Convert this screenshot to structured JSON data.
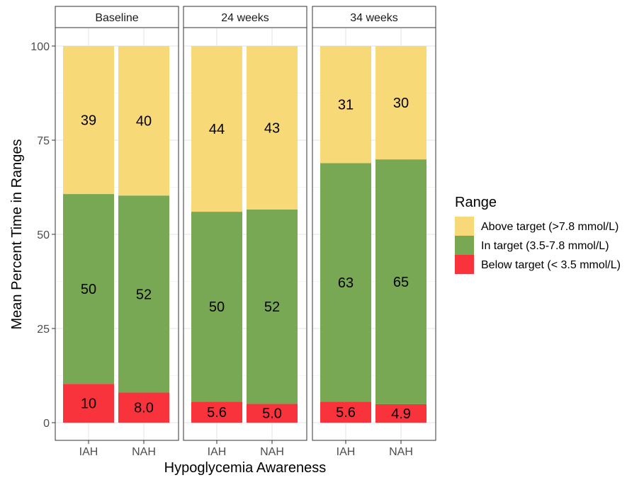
{
  "chart_data": {
    "type": "bar",
    "stacked": true,
    "facet_labels": [
      "Baseline",
      "24 weeks",
      "34 weeks"
    ],
    "categories": [
      "IAH",
      "NAH"
    ],
    "xlabel": "Hypoglycemia Awareness",
    "ylabel": "Mean Percent Time in Ranges",
    "ylim": [
      0,
      100
    ],
    "yticks": [
      0,
      25,
      50,
      75,
      100
    ],
    "grid": true,
    "legend": {
      "title": "Range",
      "position": "right"
    },
    "series": [
      {
        "name": "Below target (< 3.5 mmol/L)",
        "color": "#F8333C",
        "labels": [
          [
            "10",
            "8.0"
          ],
          [
            "5.6",
            "5.0"
          ],
          [
            "5.6",
            "4.9"
          ]
        ],
        "values": [
          [
            10.3,
            8.0
          ],
          [
            5.6,
            5.0
          ],
          [
            5.6,
            4.9
          ]
        ]
      },
      {
        "name": "In target (3.5-7.8 mmol/L)",
        "color": "#78A853",
        "labels": [
          [
            "50",
            "52"
          ],
          [
            "50",
            "52"
          ],
          [
            "63",
            "65"
          ]
        ],
        "values": [
          [
            50.4,
            52.3
          ],
          [
            50.4,
            51.6
          ],
          [
            63.3,
            65.0
          ]
        ]
      },
      {
        "name": "Above target (>7.8 mmol/L)",
        "color": "#F8D978",
        "labels": [
          [
            "39",
            "40"
          ],
          [
            "44",
            "43"
          ],
          [
            "31",
            "30"
          ]
        ],
        "values": [
          [
            39.3,
            39.7
          ],
          [
            44.0,
            43.4
          ],
          [
            31.1,
            30.1
          ]
        ]
      }
    ]
  }
}
